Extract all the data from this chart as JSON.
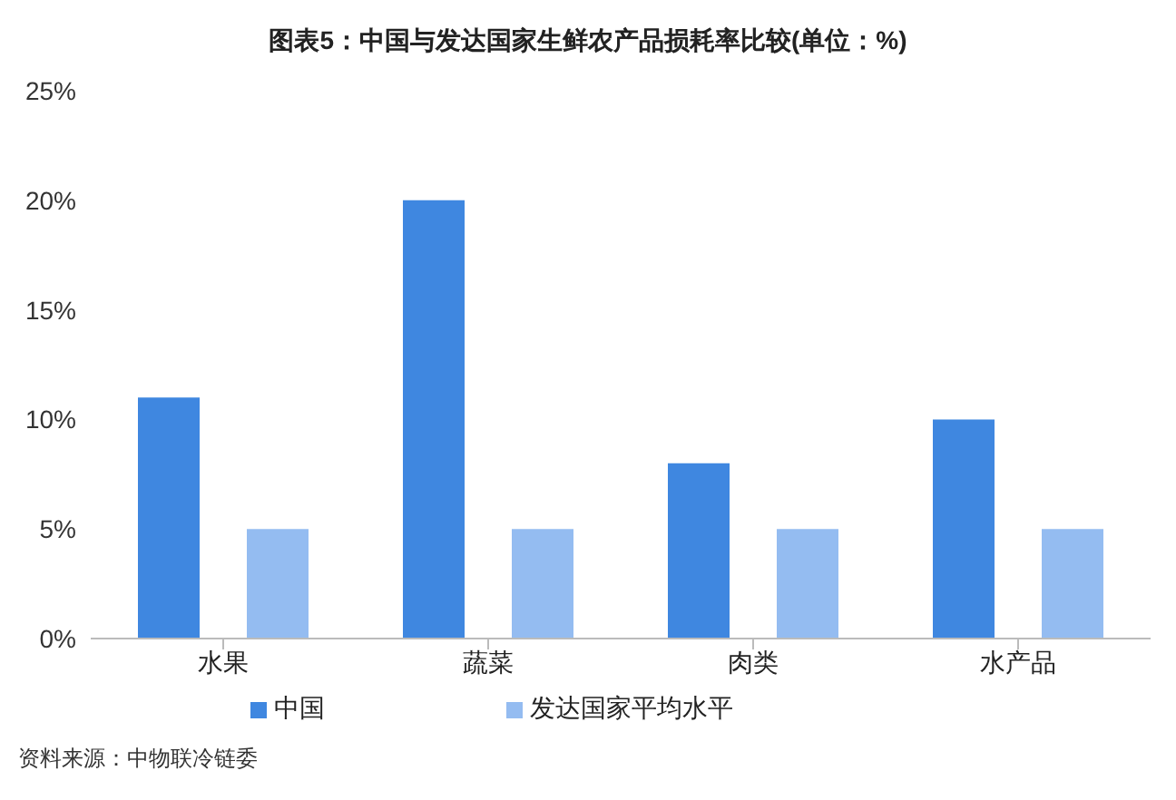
{
  "chart_data": {
    "type": "bar",
    "title": "图表5：中国与发达国家生鲜农产品损耗率比较(单位：%)",
    "categories": [
      "水果",
      "蔬菜",
      "肉类",
      "水产品"
    ],
    "series": [
      {
        "name": "中国",
        "color": "#3f87e0",
        "values": [
          11,
          20,
          8,
          10
        ]
      },
      {
        "name": "发达国家平均水平",
        "color": "#94bcf1",
        "values": [
          5,
          5,
          5,
          5
        ]
      }
    ],
    "ylim": [
      0,
      25
    ],
    "yticks": [
      {
        "value": 0,
        "label": "0%"
      },
      {
        "value": 5,
        "label": "5%"
      },
      {
        "value": 10,
        "label": "10%"
      },
      {
        "value": 15,
        "label": "15%"
      },
      {
        "value": 20,
        "label": "20%"
      },
      {
        "value": 25,
        "label": "25%"
      }
    ],
    "grid": false,
    "legend": "bottom",
    "annotations": [
      "资料来源：中物联冷链委"
    ]
  }
}
